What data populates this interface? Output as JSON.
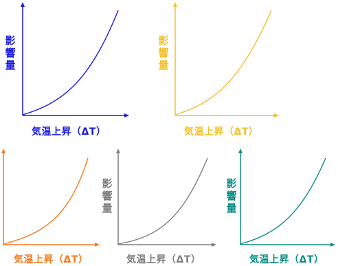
{
  "axis_labels": {
    "y": "影響量",
    "x": "気温上昇（ΔT）"
  },
  "panels": [
    {
      "id": "blue",
      "color": "#1a1adf"
    },
    {
      "id": "yellow",
      "color": "#f2c12e"
    },
    {
      "id": "orange",
      "color": "#f47a1f"
    },
    {
      "id": "gray",
      "color": "#7f7f7f"
    },
    {
      "id": "teal",
      "color": "#0f8f86"
    }
  ]
}
